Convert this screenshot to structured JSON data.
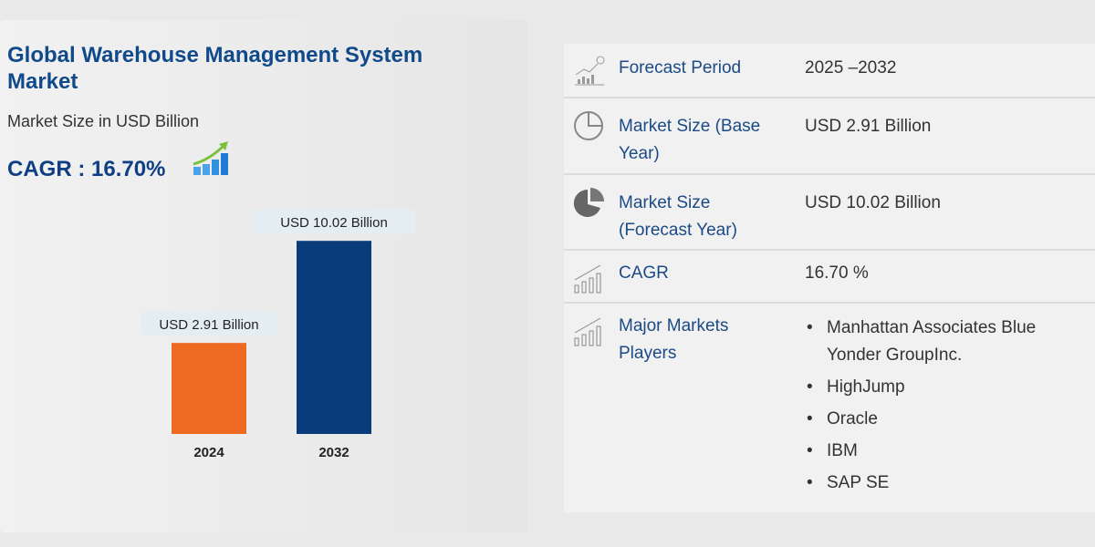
{
  "header": {
    "title": "Global Warehouse Management System Market",
    "subtitle": "Market Size in USD Billion",
    "cagr": "CAGR : 16.70%"
  },
  "chart_data": {
    "type": "bar",
    "categories": [
      "2024",
      "2032"
    ],
    "values": [
      2.91,
      10.02
    ],
    "data_labels": [
      "USD 2.91 Billion",
      "USD 10.02 Billion"
    ],
    "colors": [
      "#ee6a22",
      "#083c7a"
    ],
    "title": "Market Size in USD Billion",
    "xlabel": "",
    "ylabel": ""
  },
  "table": {
    "rows": [
      {
        "icon": "forecast-chart-icon",
        "label": "Forecast Period",
        "value": "2025 –2032"
      },
      {
        "icon": "pie-outline-icon",
        "label": "Market Size (Base Year)",
        "value": "USD 2.91 Billion"
      },
      {
        "icon": "pie-filled-icon",
        "label": "Market Size (Forecast Year)",
        "value": "USD 10.02 Billion"
      },
      {
        "icon": "growth-chart-icon",
        "label": "CAGR",
        "value": "16.70 %"
      },
      {
        "icon": "growth-chart-icon",
        "label": "Major Markets Players",
        "players": [
          "Manhattan Associates Blue Yonder GroupInc.",
          "HighJump",
          "Oracle",
          "IBM",
          "SAP SE"
        ]
      }
    ]
  }
}
